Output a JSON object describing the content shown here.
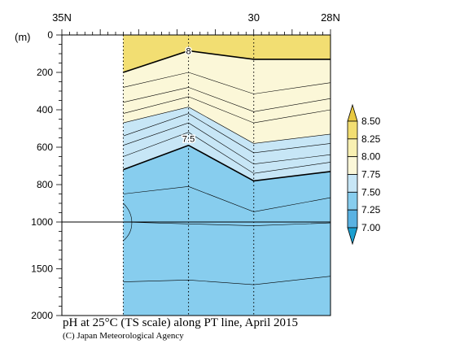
{
  "chart_data": {
    "type": "heatmap",
    "title": "pH at 25°C (TS scale) along PT line, April 2015",
    "credit": "(C) Japan Meteorological Agency",
    "x_axis": {
      "label_ticks": [
        "35N",
        "30",
        "28N"
      ],
      "range_latitude": [
        35,
        28
      ],
      "reversed": true
    },
    "y_axis": {
      "unit_label": "(m)",
      "tick_labels": [
        "0",
        "200",
        "400",
        "600",
        "800",
        "1000",
        "1500",
        "2000"
      ],
      "upper_range": [
        0,
        1000
      ],
      "lower_range": [
        1000,
        2000
      ],
      "break_depth": 1000
    },
    "data_extent_latitude": [
      33.4,
      28
    ],
    "station_latitudes": [
      33.4,
      31.7,
      30.0,
      28.0
    ],
    "colorbar": {
      "levels": [
        7.0,
        7.25,
        7.5,
        7.75,
        8.0,
        8.25,
        8.5
      ],
      "labels": [
        "8.50",
        "8.25",
        "8.00",
        "7.75",
        "7.50",
        "7.25",
        "7.00"
      ],
      "colors": [
        "#1a9fd0",
        "#5ab2e2",
        "#87cdee",
        "#c7e6f6",
        "#fbf7d8",
        "#f8f0b2",
        "#f2de72",
        "#e8c840"
      ]
    },
    "contour_labels": [
      "8",
      "7.5"
    ],
    "contours": [
      {
        "level": 8.0,
        "bold": true,
        "depths": [
          200,
          85,
          130,
          130
        ]
      },
      {
        "level": 7.95,
        "bold": false,
        "depths": [
          280,
          200,
          315,
          255
        ]
      },
      {
        "level": 7.9,
        "bold": false,
        "depths": [
          360,
          280,
          410,
          340
        ]
      },
      {
        "level": 7.85,
        "bold": false,
        "depths": [
          420,
          330,
          470,
          400
        ]
      },
      {
        "level": 7.75,
        "bold": false,
        "depths": [
          470,
          385,
          580,
          530
        ]
      },
      {
        "level": 7.7,
        "bold": false,
        "depths": [
          540,
          420,
          630,
          580
        ]
      },
      {
        "level": 7.65,
        "bold": false,
        "depths": [
          590,
          470,
          690,
          640
        ]
      },
      {
        "level": 7.6,
        "bold": false,
        "depths": [
          650,
          520,
          740,
          680
        ]
      },
      {
        "level": 7.5,
        "bold": true,
        "depths": [
          720,
          590,
          780,
          730
        ]
      },
      {
        "level": 7.45,
        "bold": false,
        "depths": [
          850,
          810,
          945,
          870
        ]
      },
      {
        "level": 7.4,
        "bold": false,
        "depths": [
          1000,
          1020,
          1040,
          1010
        ]
      },
      {
        "level": 7.35,
        "bold": false,
        "depths": [
          1640,
          1620,
          1670,
          1580
        ]
      }
    ],
    "fill_bands": [
      {
        "color": "#f2de72",
        "top": [
          0,
          0,
          0,
          0
        ],
        "bottom": [
          200,
          85,
          130,
          130
        ]
      },
      {
        "color": "#fbf7d8",
        "top": [
          200,
          85,
          130,
          130
        ],
        "bottom": [
          470,
          385,
          580,
          530
        ]
      },
      {
        "color": "#c7e6f6",
        "top": [
          470,
          385,
          580,
          530
        ],
        "bottom": [
          720,
          590,
          780,
          730
        ]
      },
      {
        "color": "#87cdee",
        "top": [
          720,
          590,
          780,
          730
        ],
        "bottom": [
          2000,
          2000,
          2000,
          2000
        ]
      }
    ]
  }
}
